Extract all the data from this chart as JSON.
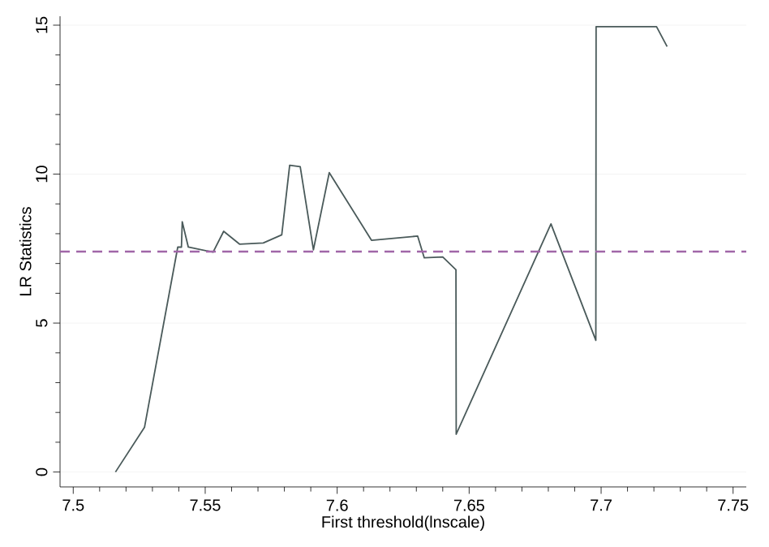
{
  "chart_data": {
    "type": "line",
    "xlabel": "First threshold(lnscale)",
    "ylabel": "LR Statistics",
    "x": [
      7.516,
      7.527,
      7.5396,
      7.541,
      7.5413,
      7.5436,
      7.553,
      7.557,
      7.563,
      7.572,
      7.579,
      7.582,
      7.586,
      7.591,
      7.597,
      7.613,
      7.6305,
      7.633,
      7.64,
      7.645,
      7.6451,
      7.681,
      7.698,
      7.6981,
      7.721,
      7.725
    ],
    "series": [
      {
        "color": "#4a5a5a",
        "values": [
          0.0,
          1.5,
          7.55,
          7.55,
          8.4,
          7.55,
          7.38,
          8.08,
          7.65,
          7.69,
          7.96,
          10.3,
          10.25,
          7.46,
          10.05,
          7.78,
          7.92,
          7.19,
          7.22,
          6.79,
          1.27,
          8.33,
          4.42,
          14.95,
          14.95,
          14.28
        ]
      }
    ],
    "xlim": [
      7.495,
      7.755
    ],
    "ylim": [
      -0.5,
      15.3
    ],
    "xticks": [
      {
        "value": 7.5,
        "label": "7.5"
      },
      {
        "value": 7.55,
        "label": "7.55"
      },
      {
        "value": 7.6,
        "label": "7.6"
      },
      {
        "value": 7.65,
        "label": "7.65"
      },
      {
        "value": 7.7,
        "label": "7.7"
      },
      {
        "value": 7.75,
        "label": "7.75"
      }
    ],
    "yticks": [
      0,
      5,
      10,
      15
    ],
    "ref_lines": [
      {
        "axis": "y",
        "value": 7.4,
        "color": "#a066a8",
        "line_style": "dashed"
      }
    ],
    "grid": "y",
    "marker": "none",
    "line_style": "solid"
  }
}
